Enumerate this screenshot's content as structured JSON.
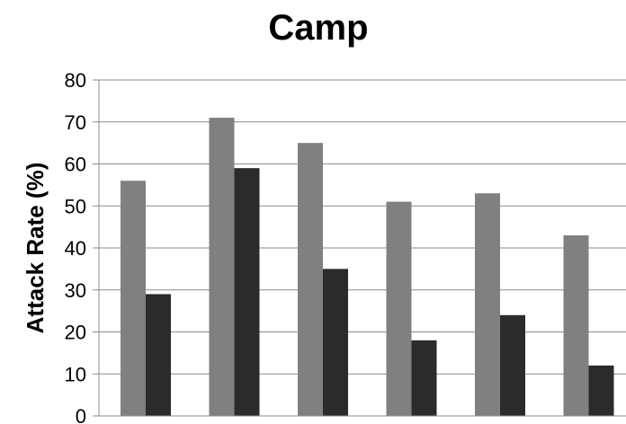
{
  "chart_data": {
    "type": "bar",
    "title": "Camp",
    "ylabel": "Attack Rate (%)",
    "xlabel": "",
    "ylim": [
      0,
      80
    ],
    "yticks": [
      0,
      10,
      20,
      30,
      40,
      50,
      60,
      70,
      80
    ],
    "grid": true,
    "legend": "none",
    "categories": [
      "",
      "",
      "",
      "",
      "",
      ""
    ],
    "series": [
      {
        "values": [
          56,
          71,
          65,
          51,
          53,
          43
        ],
        "color": "#808080"
      },
      {
        "values": [
          29,
          59,
          35,
          18,
          24,
          12
        ],
        "color": "#2b2b2b"
      }
    ]
  }
}
